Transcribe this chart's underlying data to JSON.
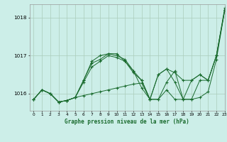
{
  "background_color": "#cceee8",
  "grid_color": "#aaccbb",
  "line_color": "#1a6b2e",
  "title": "Graphe pression niveau de la mer (hPa)",
  "xlim": [
    -0.5,
    23
  ],
  "ylim": [
    1015.55,
    1018.35
  ],
  "yticks": [
    1016,
    1017,
    1018
  ],
  "xticks": [
    0,
    1,
    2,
    3,
    4,
    5,
    6,
    7,
    8,
    9,
    10,
    11,
    12,
    13,
    14,
    15,
    16,
    17,
    18,
    19,
    20,
    21,
    22,
    23
  ],
  "series": [
    {
      "x": [
        0,
        1,
        2,
        3,
        4,
        5,
        6,
        7,
        8,
        9,
        10,
        11,
        12,
        13,
        14,
        15,
        16,
        17,
        18,
        19,
        20,
        21,
        22,
        23
      ],
      "y": [
        1015.85,
        1016.1,
        1016.0,
        1015.78,
        1015.82,
        1015.9,
        1015.95,
        1016.0,
        1016.05,
        1016.1,
        1016.15,
        1016.2,
        1016.25,
        1016.28,
        1015.85,
        1015.85,
        1016.1,
        1015.85,
        1015.85,
        1015.85,
        1015.9,
        1016.05,
        1016.9,
        1018.2
      ]
    },
    {
      "x": [
        0,
        1,
        2,
        3,
        4,
        5,
        6,
        7,
        8,
        9,
        10,
        11,
        12,
        13,
        14,
        15,
        16,
        17,
        18,
        19,
        20,
        21,
        22,
        23
      ],
      "y": [
        1015.85,
        1016.1,
        1016.0,
        1015.78,
        1015.82,
        1015.9,
        1016.3,
        1016.7,
        1016.85,
        1017.0,
        1016.95,
        1016.85,
        1016.55,
        1016.35,
        1015.85,
        1015.85,
        1016.3,
        1016.6,
        1015.85,
        1015.85,
        1016.35,
        1016.35,
        1017.0,
        1018.2
      ]
    },
    {
      "x": [
        0,
        1,
        2,
        3,
        4,
        5,
        6,
        7,
        8,
        9,
        10,
        11,
        12,
        13,
        14,
        15,
        16,
        17,
        18,
        19,
        20,
        21,
        22,
        23
      ],
      "y": [
        1015.85,
        1016.1,
        1016.0,
        1015.78,
        1015.82,
        1015.9,
        1016.35,
        1016.8,
        1016.9,
        1017.05,
        1017.0,
        1016.9,
        1016.6,
        1016.35,
        1015.85,
        1016.5,
        1016.65,
        1016.55,
        1016.35,
        1016.35,
        1016.5,
        1016.35,
        1017.0,
        1018.2
      ]
    },
    {
      "x": [
        0,
        1,
        2,
        3,
        4,
        5,
        6,
        7,
        8,
        9,
        10,
        11,
        12,
        13,
        14,
        15,
        16,
        17,
        18,
        19,
        20,
        21,
        22,
        23
      ],
      "y": [
        1015.85,
        1016.1,
        1016.0,
        1015.78,
        1015.82,
        1015.9,
        1016.35,
        1016.85,
        1017.0,
        1017.05,
        1017.05,
        1016.85,
        1016.6,
        1016.15,
        1015.85,
        1016.5,
        1016.65,
        1016.3,
        1015.85,
        1016.35,
        1016.5,
        1016.35,
        1017.0,
        1018.25
      ]
    }
  ]
}
